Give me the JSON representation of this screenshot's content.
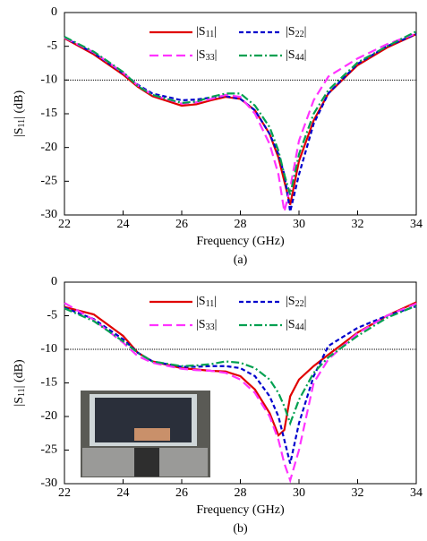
{
  "chart_data": [
    {
      "type": "line",
      "label": "(a)",
      "x_label": "Frequency (GHz)",
      "y_label": "|S11| (dB)",
      "x": [
        22,
        23,
        24,
        24.5,
        25,
        26,
        26.5,
        27,
        27.5,
        28,
        28.5,
        29,
        29.3,
        29.5,
        29.7,
        30,
        30.5,
        31,
        32,
        33,
        34
      ],
      "series": [
        {
          "name": "|S11|",
          "color": "#e00000",
          "dash": "none",
          "values": [
            -3.8,
            -6.2,
            -9.2,
            -11,
            -12.4,
            -13.8,
            -13.6,
            -13,
            -12.5,
            -12.8,
            -14.5,
            -18,
            -21.5,
            -25,
            -28.5,
            -22,
            -16,
            -12,
            -7.8,
            -5.2,
            -3.2
          ]
        },
        {
          "name": "|S22|",
          "color": "#0000cc",
          "dash": "5 3",
          "values": [
            -3.7,
            -6,
            -9,
            -10.7,
            -12,
            -13,
            -12.9,
            -12.6,
            -12.4,
            -12.8,
            -14.5,
            -18,
            -21,
            -24,
            -29.5,
            -24,
            -16.5,
            -12,
            -7.6,
            -5,
            -3.2
          ]
        },
        {
          "name": "|S33|",
          "color": "#ff33ff",
          "dash": "10 5",
          "values": [
            -3.7,
            -5.9,
            -8.9,
            -10.8,
            -12.2,
            -13.5,
            -13.3,
            -12.8,
            -12.2,
            -12.5,
            -15,
            -19.5,
            -24,
            -29.5,
            -26,
            -19,
            -13,
            -9.5,
            -6.8,
            -4.7,
            -3.1
          ]
        },
        {
          "name": "|S44|",
          "color": "#00a050",
          "dash": "9 3 2 3",
          "values": [
            -3.6,
            -5.8,
            -8.8,
            -10.9,
            -12.2,
            -13.4,
            -13.2,
            -12.5,
            -12,
            -12,
            -13.8,
            -17,
            -20.5,
            -24,
            -27,
            -21,
            -15,
            -11.5,
            -7.4,
            -5,
            -2.8
          ]
        }
      ],
      "xlim": [
        22,
        34
      ],
      "xticks": [
        22,
        24,
        26,
        28,
        30,
        32,
        34
      ],
      "ylim": [
        -30,
        0
      ],
      "yticks": [
        0,
        -5,
        -10,
        -15,
        -20,
        -25,
        -30
      ],
      "hline": -10
    },
    {
      "type": "line",
      "label": "(b)",
      "x_label": "Frequency (GHz)",
      "y_label": "|S11| (dB)",
      "x": [
        22,
        23,
        24,
        24.5,
        25,
        26,
        26.5,
        27,
        27.5,
        28,
        28.5,
        29,
        29.3,
        29.5,
        29.7,
        30,
        30.5,
        31,
        32,
        33,
        34
      ],
      "series": [
        {
          "name": "|S11|",
          "color": "#e00000",
          "dash": "none",
          "values": [
            -3.7,
            -4.8,
            -8,
            -10.5,
            -11.8,
            -12.8,
            -13,
            -13.2,
            -13.3,
            -14,
            -16,
            -19.5,
            -22.8,
            -22,
            -17,
            -14.5,
            -12.5,
            -10.8,
            -7.5,
            -5,
            -3
          ]
        },
        {
          "name": "|S22|",
          "color": "#0000cc",
          "dash": "5 3",
          "values": [
            -3.8,
            -5.5,
            -8.5,
            -10.5,
            -11.8,
            -12.6,
            -12.6,
            -12.5,
            -12.5,
            -12.8,
            -14,
            -17,
            -20,
            -23.5,
            -27,
            -21,
            -14,
            -9.5,
            -6.8,
            -5,
            -3.6
          ]
        },
        {
          "name": "|S33|",
          "color": "#ff33ff",
          "dash": "10 5",
          "values": [
            -3.1,
            -5.6,
            -9,
            -11,
            -12,
            -12.9,
            -13.1,
            -13.2,
            -13.5,
            -14.5,
            -16.5,
            -20,
            -23.5,
            -27,
            -29.5,
            -25,
            -15,
            -11.5,
            -7.6,
            -5,
            -3.2
          ]
        },
        {
          "name": "|S44|",
          "color": "#00a050",
          "dash": "9 3 2 3",
          "values": [
            -3.9,
            -5.8,
            -8.8,
            -10.5,
            -11.8,
            -12.5,
            -12.4,
            -12.2,
            -11.8,
            -12,
            -12.8,
            -14.5,
            -16.5,
            -18.5,
            -21,
            -17.5,
            -13.5,
            -11.2,
            -8,
            -5.3,
            -3.5
          ]
        }
      ],
      "xlim": [
        22,
        34
      ],
      "xticks": [
        22,
        24,
        26,
        28,
        30,
        32,
        34
      ],
      "ylim": [
        -30,
        0
      ],
      "yticks": [
        0,
        -5,
        -10,
        -15,
        -20,
        -25,
        -30
      ],
      "hline": -10
    }
  ]
}
